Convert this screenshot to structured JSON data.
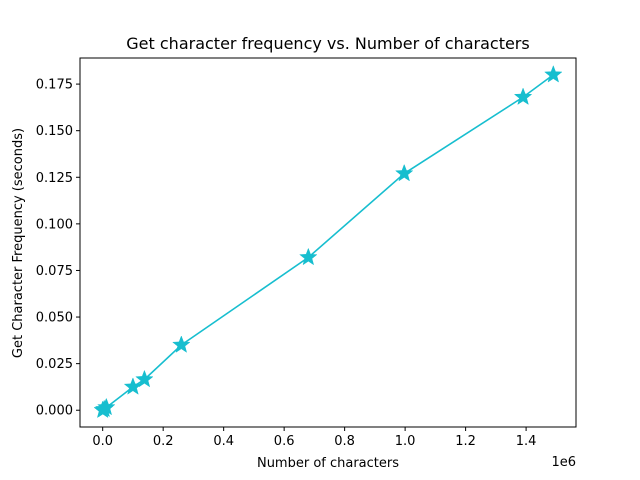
{
  "chart_data": {
    "type": "line",
    "title": "Get character frequency vs. Number of characters",
    "xlabel": "Number of characters",
    "ylabel": "Get Character Frequency (seconds)",
    "x_offset_label": "1e6",
    "x_scale": 1000000,
    "xlim": [
      -0.075,
      1.565
    ],
    "ylim": [
      -0.009,
      0.189
    ],
    "x_ticks": [
      0.0,
      0.2,
      0.4,
      0.6,
      0.8,
      1.0,
      1.2,
      1.4
    ],
    "x_tick_labels": [
      "0.0",
      "0.2",
      "0.4",
      "0.6",
      "0.8",
      "1.0",
      "1.2",
      "1.4"
    ],
    "y_ticks": [
      0.0,
      0.025,
      0.05,
      0.075,
      0.1,
      0.125,
      0.15,
      0.175
    ],
    "y_tick_labels": [
      "0.000",
      "0.025",
      "0.050",
      "0.075",
      "0.100",
      "0.125",
      "0.150",
      "0.175"
    ],
    "grid": false,
    "color": "#17becf",
    "marker": "star",
    "series": [
      {
        "x": [
          0.0,
          0.005,
          0.012,
          0.1,
          0.138,
          0.26,
          0.68,
          0.997,
          1.39,
          1.49
        ],
        "y": [
          0.0,
          0.0005,
          0.0015,
          0.0125,
          0.0165,
          0.035,
          0.082,
          0.127,
          0.168,
          0.18
        ]
      }
    ]
  }
}
